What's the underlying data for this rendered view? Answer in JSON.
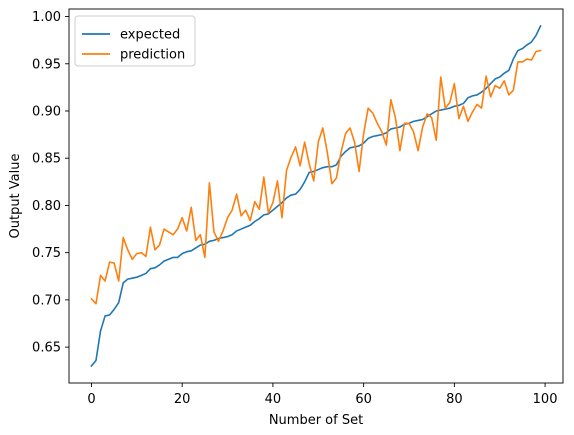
{
  "chart_data": {
    "type": "line",
    "xlabel": "Number of Set",
    "ylabel": "Output Value",
    "xlim": [
      -4.95,
      103.95
    ],
    "ylim": [
      0.612,
      1.008
    ],
    "xticks": [
      0,
      20,
      40,
      60,
      80,
      100
    ],
    "yticks": [
      0.65,
      0.7,
      0.75,
      0.8,
      0.85,
      0.9,
      0.95,
      1.0
    ],
    "xtick_labels": [
      "0",
      "20",
      "40",
      "60",
      "80",
      "100"
    ],
    "ytick_labels": [
      "0.65",
      "0.70",
      "0.75",
      "0.80",
      "0.85",
      "0.90",
      "0.95",
      "1.00"
    ],
    "legend_position": "upper-left",
    "series": [
      {
        "name": "expected",
        "color": "#1f77b4",
        "values": [
          0.63,
          0.636,
          0.667,
          0.683,
          0.684,
          0.69,
          0.697,
          0.718,
          0.722,
          0.723,
          0.724,
          0.726,
          0.728,
          0.733,
          0.734,
          0.737,
          0.741,
          0.743,
          0.745,
          0.745,
          0.749,
          0.751,
          0.752,
          0.755,
          0.758,
          0.759,
          0.762,
          0.763,
          0.765,
          0.766,
          0.767,
          0.769,
          0.773,
          0.775,
          0.777,
          0.779,
          0.783,
          0.786,
          0.79,
          0.791,
          0.795,
          0.799,
          0.803,
          0.808,
          0.811,
          0.812,
          0.817,
          0.825,
          0.835,
          0.836,
          0.838,
          0.84,
          0.841,
          0.841,
          0.843,
          0.852,
          0.857,
          0.861,
          0.862,
          0.863,
          0.866,
          0.871,
          0.873,
          0.874,
          0.875,
          0.877,
          0.881,
          0.882,
          0.883,
          0.886,
          0.887,
          0.889,
          0.89,
          0.891,
          0.894,
          0.897,
          0.9,
          0.901,
          0.902,
          0.903,
          0.905,
          0.906,
          0.908,
          0.914,
          0.916,
          0.917,
          0.92,
          0.924,
          0.929,
          0.934,
          0.936,
          0.94,
          0.943,
          0.955,
          0.964,
          0.966,
          0.97,
          0.973,
          0.98,
          0.99
        ]
      },
      {
        "name": "prediction",
        "color": "#ff7f0e",
        "values": [
          0.701,
          0.696,
          0.726,
          0.72,
          0.74,
          0.739,
          0.72,
          0.766,
          0.753,
          0.743,
          0.749,
          0.75,
          0.746,
          0.777,
          0.753,
          0.758,
          0.775,
          0.772,
          0.769,
          0.775,
          0.787,
          0.773,
          0.798,
          0.763,
          0.769,
          0.745,
          0.824,
          0.772,
          0.762,
          0.773,
          0.787,
          0.795,
          0.812,
          0.789,
          0.795,
          0.784,
          0.804,
          0.796,
          0.83,
          0.792,
          0.803,
          0.826,
          0.787,
          0.837,
          0.851,
          0.862,
          0.842,
          0.867,
          0.844,
          0.826,
          0.867,
          0.882,
          0.856,
          0.823,
          0.829,
          0.856,
          0.876,
          0.882,
          0.867,
          0.836,
          0.876,
          0.903,
          0.898,
          0.887,
          0.878,
          0.864,
          0.912,
          0.893,
          0.858,
          0.887,
          0.887,
          0.878,
          0.858,
          0.883,
          0.897,
          0.893,
          0.869,
          0.936,
          0.903,
          0.909,
          0.929,
          0.892,
          0.905,
          0.889,
          0.899,
          0.907,
          0.903,
          0.937,
          0.915,
          0.927,
          0.924,
          0.932,
          0.917,
          0.922,
          0.952,
          0.952,
          0.955,
          0.954,
          0.963,
          0.964
        ]
      }
    ]
  }
}
